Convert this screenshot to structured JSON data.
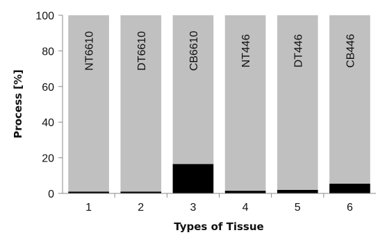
{
  "chart_data": {
    "type": "bar",
    "stacked": true,
    "categories": [
      "1",
      "2",
      "3",
      "4",
      "5",
      "6"
    ],
    "bar_labels": [
      "NT6610",
      "DT6610",
      "CB6610",
      "NT446",
      "DT446",
      "CB446"
    ],
    "series": [
      {
        "values": [
          1,
          1,
          16.5,
          1.5,
          2,
          5.5
        ],
        "color": "#000000"
      },
      {
        "values": [
          99,
          99,
          83.5,
          98.5,
          98,
          94.5
        ],
        "color": "#c0c0c0"
      }
    ],
    "xlabel": "Types of Tissue",
    "ylabel": "Process [%]",
    "ylim": [
      0,
      100
    ],
    "yticks": [
      0,
      20,
      40,
      60,
      80,
      100
    ],
    "grid": false,
    "legend": "none"
  }
}
